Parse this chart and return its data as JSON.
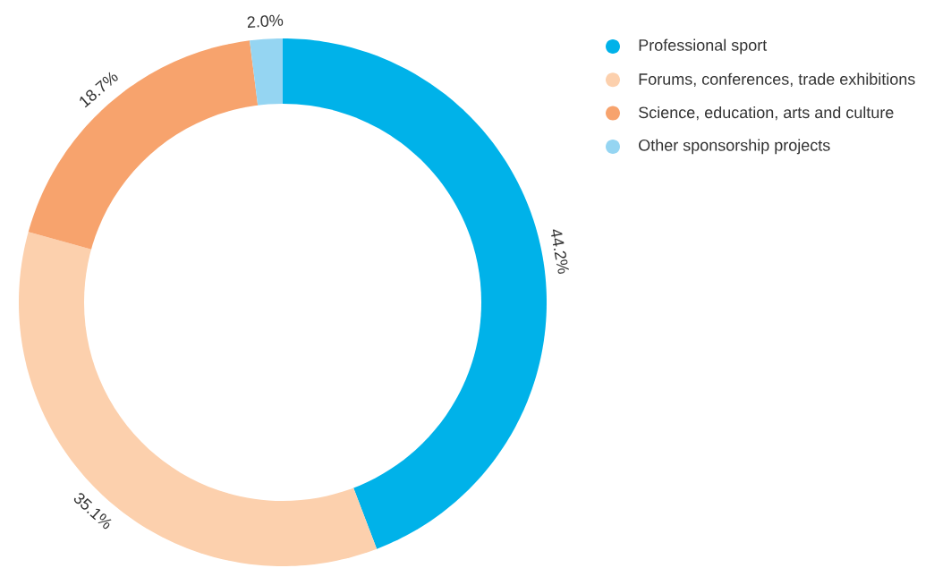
{
  "chart_data": {
    "type": "donut",
    "categories": [
      "Professional sport",
      "Forums, conferences, trade exhibitions",
      "Science, education, arts and culture",
      "Other sponsorship projects"
    ],
    "values": [
      44.2,
      35.1,
      18.7,
      2.0
    ],
    "colors": [
      "#00b2e9",
      "#fcd0ad",
      "#f7a36d",
      "#95d5f2"
    ],
    "value_labels": [
      "44.2%",
      "35.1%",
      "18.7%",
      "2.0%"
    ],
    "legend": "top right"
  }
}
